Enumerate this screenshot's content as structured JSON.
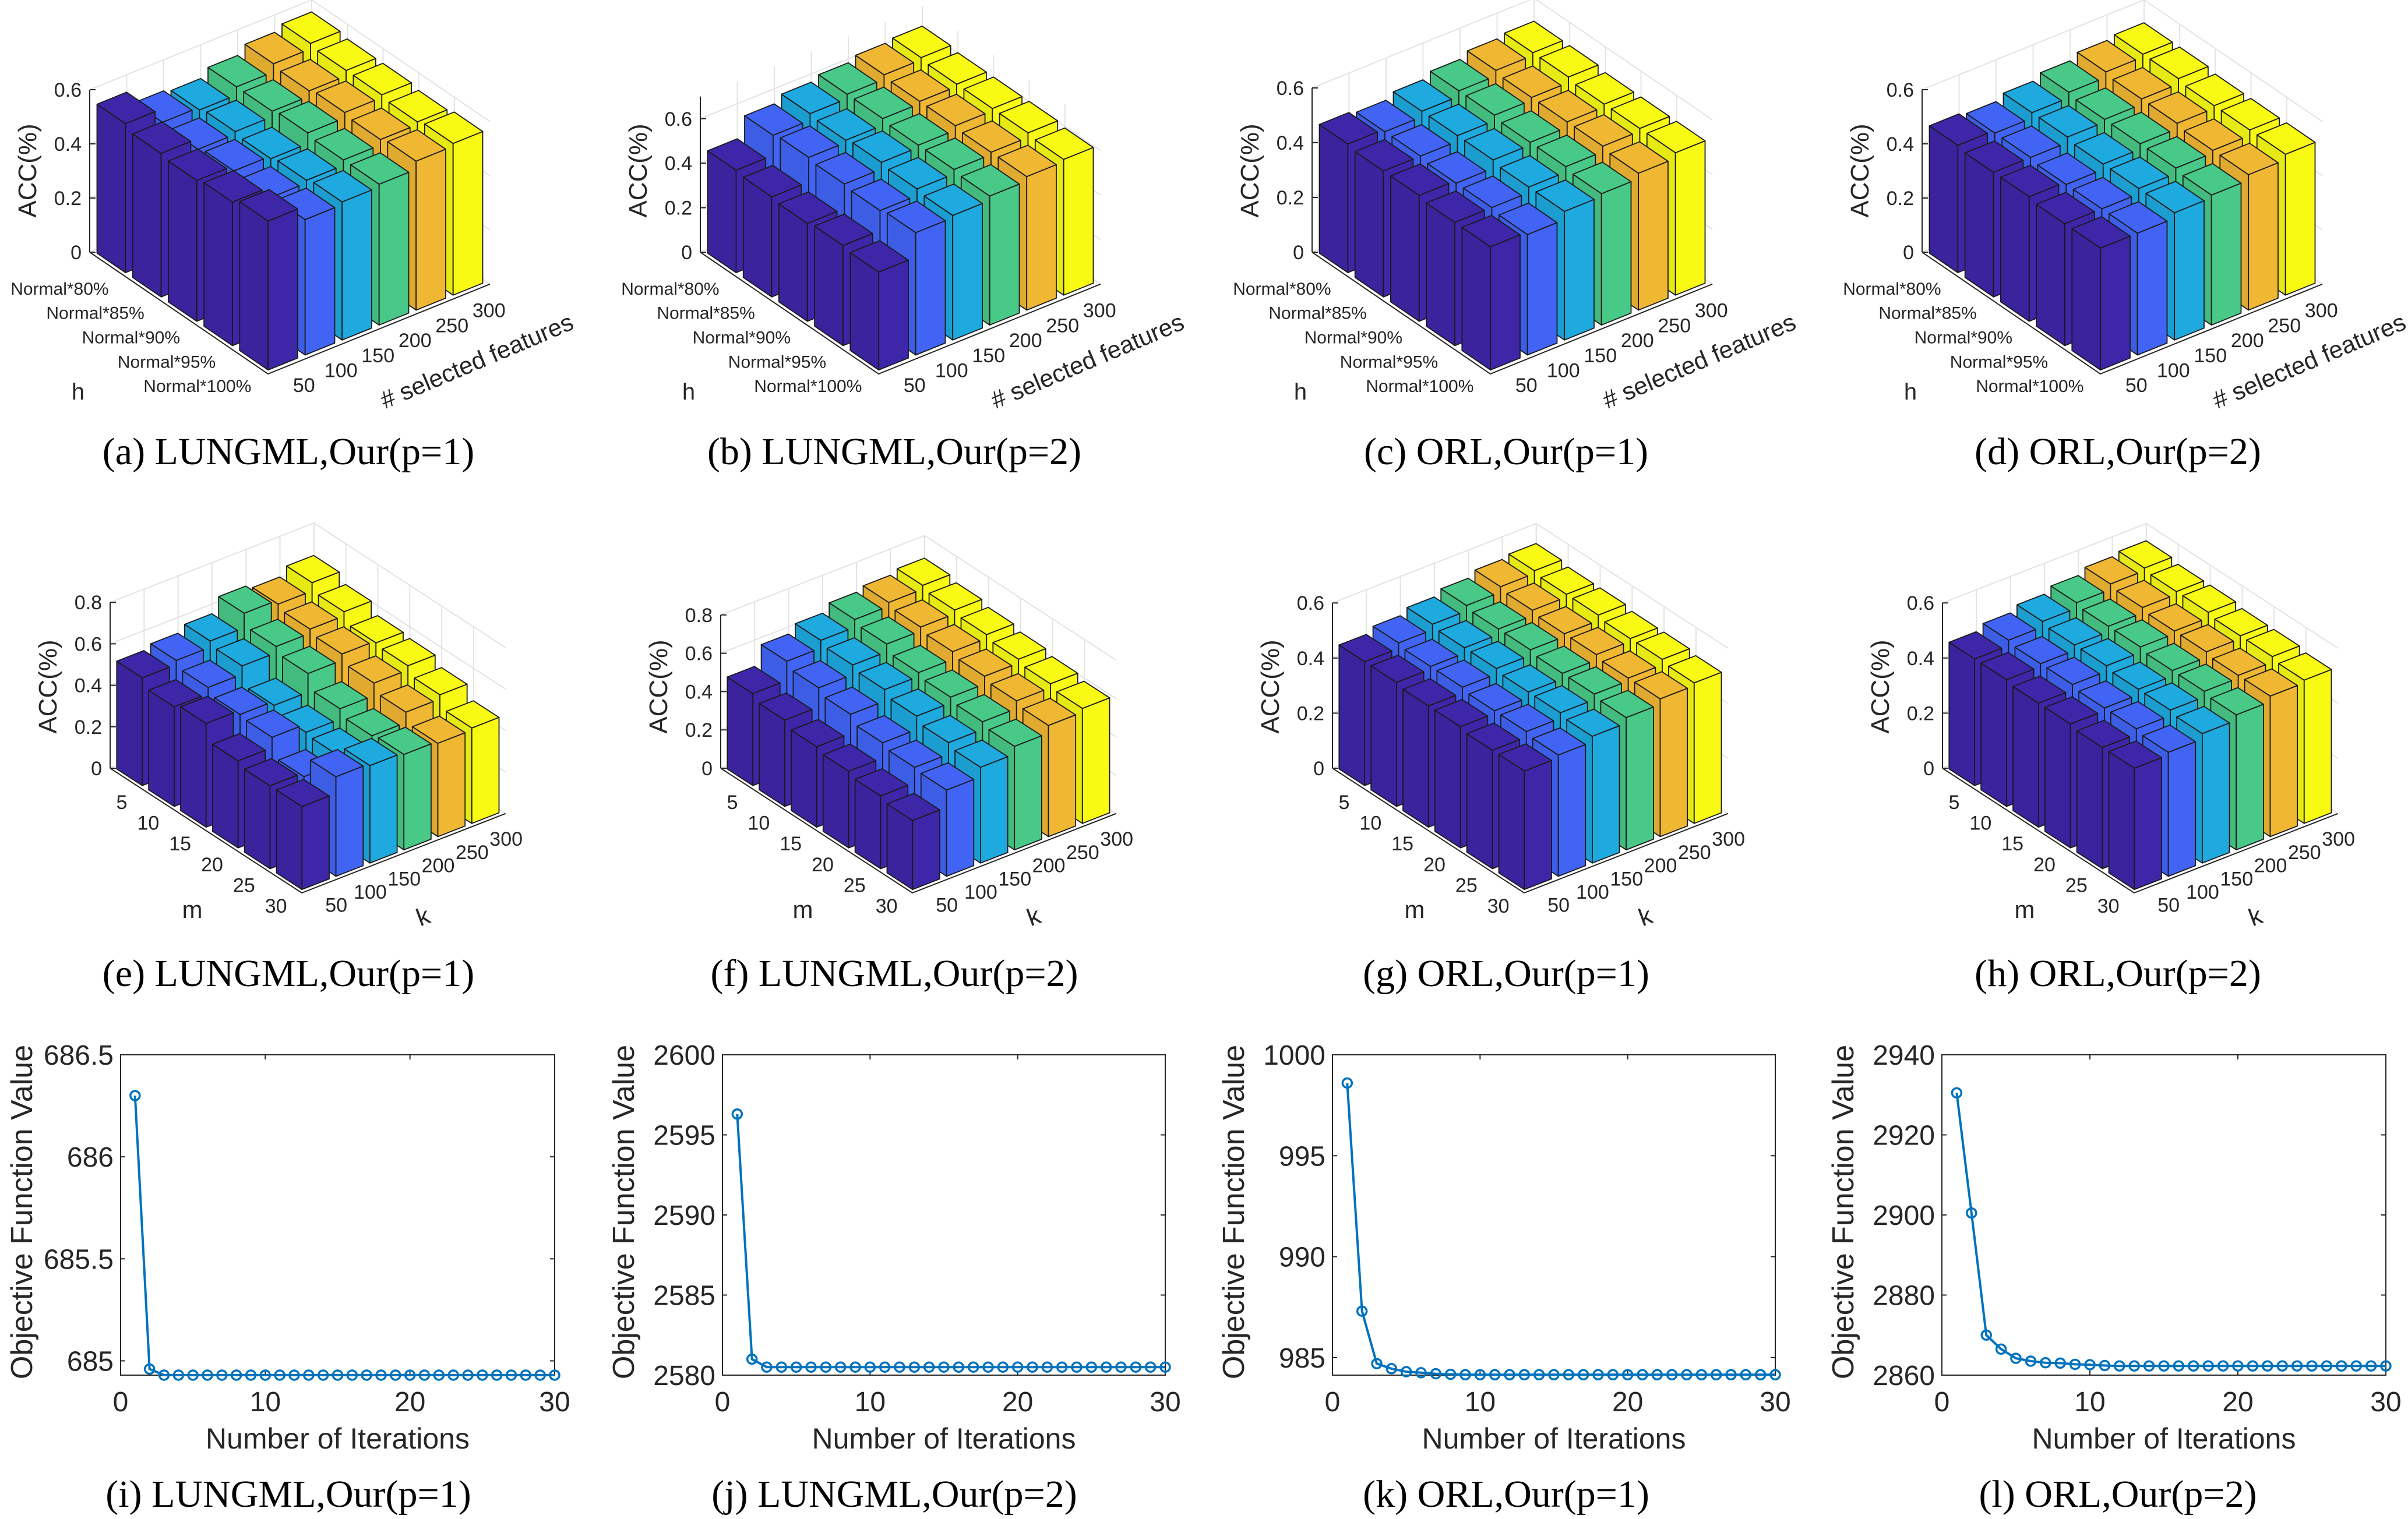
{
  "chart_data": [
    {
      "type": "bar3d",
      "caption": "(a) LUNGML,Our(p=1)",
      "zlabel": "ACC(%)",
      "row_label": "h",
      "col_label": "# selected features",
      "rows": [
        "Normal*80%",
        "Normal*85%",
        "Normal*90%",
        "Normal*95%",
        "Normal*100%"
      ],
      "cols": [
        "50",
        "100",
        "150",
        "200",
        "250",
        "300"
      ],
      "zticks": [
        0,
        0.2,
        0.4,
        0.6
      ],
      "zlim": [
        0,
        0.6
      ],
      "values": [
        [
          0.55,
          0.5,
          0.49,
          0.52,
          0.55,
          0.57
        ],
        [
          0.53,
          0.49,
          0.5,
          0.52,
          0.54,
          0.56
        ],
        [
          0.52,
          0.5,
          0.49,
          0.53,
          0.55,
          0.56
        ],
        [
          0.53,
          0.49,
          0.5,
          0.52,
          0.54,
          0.55
        ],
        [
          0.55,
          0.5,
          0.51,
          0.52,
          0.55,
          0.56
        ]
      ]
    },
    {
      "type": "bar3d",
      "caption": "(b) LUNGML,Our(p=2)",
      "zlabel": "ACC(%)",
      "row_label": "h",
      "col_label": "# selected features",
      "rows": [
        "Normal*80%",
        "Normal*85%",
        "Normal*90%",
        "Normal*95%",
        "Normal*100%"
      ],
      "cols": [
        "50",
        "100",
        "150",
        "200",
        "250",
        "300"
      ],
      "zticks": [
        0,
        0.2,
        0.4,
        0.6
      ],
      "zlim": [
        0,
        0.7
      ],
      "values": [
        [
          0.46,
          0.55,
          0.58,
          0.6,
          0.62,
          0.63
        ],
        [
          0.45,
          0.56,
          0.57,
          0.6,
          0.61,
          0.62
        ],
        [
          0.44,
          0.55,
          0.58,
          0.59,
          0.61,
          0.62
        ],
        [
          0.45,
          0.54,
          0.57,
          0.59,
          0.6,
          0.62
        ],
        [
          0.44,
          0.55,
          0.56,
          0.58,
          0.6,
          0.61
        ]
      ]
    },
    {
      "type": "bar3d",
      "caption": "(c) ORL,Our(p=1)",
      "zlabel": "ACC(%)",
      "row_label": "h",
      "col_label": "# selected features",
      "rows": [
        "Normal*80%",
        "Normal*85%",
        "Normal*90%",
        "Normal*95%",
        "Normal*100%"
      ],
      "cols": [
        "50",
        "100",
        "150",
        "200",
        "250",
        "300"
      ],
      "zticks": [
        0,
        0.2,
        0.4,
        0.6
      ],
      "zlim": [
        0,
        0.6
      ],
      "values": [
        [
          0.47,
          0.46,
          0.48,
          0.5,
          0.52,
          0.53
        ],
        [
          0.46,
          0.46,
          0.48,
          0.5,
          0.51,
          0.53
        ],
        [
          0.46,
          0.45,
          0.48,
          0.49,
          0.51,
          0.52
        ],
        [
          0.45,
          0.45,
          0.47,
          0.49,
          0.51,
          0.52
        ],
        [
          0.45,
          0.44,
          0.47,
          0.48,
          0.5,
          0.52
        ]
      ]
    },
    {
      "type": "bar3d",
      "caption": "(d) ORL,Our(p=2)",
      "zlabel": "ACC(%)",
      "row_label": "h",
      "col_label": "# selected features",
      "rows": [
        "Normal*80%",
        "Normal*85%",
        "Normal*90%",
        "Normal*95%",
        "Normal*100%"
      ],
      "cols": [
        "50",
        "100",
        "150",
        "200",
        "250",
        "300"
      ],
      "zticks": [
        0,
        0.2,
        0.4,
        0.6
      ],
      "zlim": [
        0,
        0.6
      ],
      "values": [
        [
          0.47,
          0.46,
          0.48,
          0.5,
          0.52,
          0.53
        ],
        [
          0.46,
          0.46,
          0.48,
          0.49,
          0.51,
          0.53
        ],
        [
          0.46,
          0.45,
          0.47,
          0.49,
          0.51,
          0.52
        ],
        [
          0.45,
          0.45,
          0.47,
          0.49,
          0.5,
          0.52
        ],
        [
          0.45,
          0.45,
          0.47,
          0.48,
          0.5,
          0.52
        ]
      ]
    },
    {
      "type": "bar3d",
      "caption": "(e) LUNGML,Our(p=1)",
      "zlabel": "ACC(%)",
      "row_label": "m",
      "col_label": "k",
      "rows": [
        "5",
        "10",
        "15",
        "20",
        "25",
        "30"
      ],
      "cols": [
        "50",
        "100",
        "150",
        "200",
        "250",
        "300"
      ],
      "zticks": [
        0,
        0.2,
        0.4,
        0.6,
        0.8
      ],
      "zlim": [
        0,
        0.8
      ],
      "values": [
        [
          0.52,
          0.54,
          0.57,
          0.64,
          0.62,
          0.66
        ],
        [
          0.48,
          0.51,
          0.55,
          0.58,
          0.6,
          0.62
        ],
        [
          0.5,
          0.48,
          0.46,
          0.55,
          0.58,
          0.57
        ],
        [
          0.42,
          0.47,
          0.43,
          0.48,
          0.54,
          0.56
        ],
        [
          0.4,
          0.38,
          0.42,
          0.45,
          0.5,
          0.52
        ],
        [
          0.4,
          0.48,
          0.47,
          0.46,
          0.45,
          0.46
        ]
      ]
    },
    {
      "type": "bar3d",
      "caption": "(f) LUNGML,Our(p=2)",
      "zlabel": "ACC(%)",
      "row_label": "m",
      "col_label": "k",
      "rows": [
        "5",
        "10",
        "15",
        "20",
        "25",
        "30"
      ],
      "cols": [
        "50",
        "100",
        "150",
        "200",
        "250",
        "300"
      ],
      "zticks": [
        0,
        0.2,
        0.4,
        0.6,
        0.8
      ],
      "zlim": [
        0,
        0.8
      ],
      "values": [
        [
          0.48,
          0.58,
          0.62,
          0.66,
          0.68,
          0.7
        ],
        [
          0.45,
          0.55,
          0.6,
          0.64,
          0.66,
          0.68
        ],
        [
          0.42,
          0.52,
          0.58,
          0.6,
          0.64,
          0.66
        ],
        [
          0.4,
          0.48,
          0.55,
          0.58,
          0.62,
          0.64
        ],
        [
          0.38,
          0.46,
          0.52,
          0.56,
          0.6,
          0.62
        ],
        [
          0.36,
          0.45,
          0.5,
          0.54,
          0.58,
          0.6
        ]
      ]
    },
    {
      "type": "bar3d",
      "caption": "(g) ORL,Our(p=1)",
      "zlabel": "ACC(%)",
      "row_label": "m",
      "col_label": "k",
      "rows": [
        "5",
        "10",
        "15",
        "20",
        "25",
        "30"
      ],
      "cols": [
        "50",
        "100",
        "150",
        "200",
        "250",
        "300"
      ],
      "zticks": [
        0,
        0.2,
        0.4,
        0.6
      ],
      "zlim": [
        0,
        0.6
      ],
      "values": [
        [
          0.45,
          0.47,
          0.49,
          0.51,
          0.53,
          0.54
        ],
        [
          0.45,
          0.46,
          0.48,
          0.5,
          0.52,
          0.53
        ],
        [
          0.44,
          0.46,
          0.48,
          0.5,
          0.51,
          0.53
        ],
        [
          0.44,
          0.45,
          0.47,
          0.49,
          0.51,
          0.52
        ],
        [
          0.43,
          0.45,
          0.47,
          0.49,
          0.5,
          0.52
        ],
        [
          0.43,
          0.44,
          0.46,
          0.48,
          0.5,
          0.51
        ]
      ]
    },
    {
      "type": "bar3d",
      "caption": "(h) ORL,Our(p=2)",
      "zlabel": "ACC(%)",
      "row_label": "m",
      "col_label": "k",
      "rows": [
        "5",
        "10",
        "15",
        "20",
        "25",
        "30"
      ],
      "cols": [
        "50",
        "100",
        "150",
        "200",
        "250",
        "300"
      ],
      "zticks": [
        0,
        0.2,
        0.4,
        0.6
      ],
      "zlim": [
        0,
        0.6
      ],
      "values": [
        [
          0.46,
          0.48,
          0.5,
          0.52,
          0.54,
          0.55
        ],
        [
          0.46,
          0.47,
          0.49,
          0.51,
          0.53,
          0.54
        ],
        [
          0.45,
          0.47,
          0.49,
          0.51,
          0.52,
          0.54
        ],
        [
          0.45,
          0.46,
          0.48,
          0.5,
          0.52,
          0.53
        ],
        [
          0.44,
          0.46,
          0.48,
          0.5,
          0.51,
          0.53
        ],
        [
          0.44,
          0.45,
          0.47,
          0.49,
          0.51,
          0.52
        ]
      ]
    },
    {
      "type": "line",
      "caption": "(i) LUNGML,Our(p=1)",
      "xlabel": "Number of Iterations",
      "ylabel": "Objective Function Value",
      "xlim": [
        0,
        30
      ],
      "xticks": [
        0,
        10,
        20,
        30
      ],
      "ylim": [
        684.93,
        686.5
      ],
      "yticks": [
        685,
        685.5,
        686,
        686.5
      ],
      "ytick_labels": [
        "685",
        "685.5",
        "686",
        "686.5"
      ],
      "x": [
        1,
        2,
        3,
        4,
        5,
        6,
        7,
        8,
        9,
        10,
        11,
        12,
        13,
        14,
        15,
        16,
        17,
        18,
        19,
        20,
        21,
        22,
        23,
        24,
        25,
        26,
        27,
        28,
        29,
        30
      ],
      "y": [
        686.3,
        684.96,
        684.93,
        684.93,
        684.93,
        684.93,
        684.93,
        684.93,
        684.93,
        684.93,
        684.93,
        684.93,
        684.93,
        684.93,
        684.93,
        684.93,
        684.93,
        684.93,
        684.93,
        684.93,
        684.93,
        684.93,
        684.93,
        684.93,
        684.93,
        684.93,
        684.93,
        684.93,
        684.93,
        684.93
      ]
    },
    {
      "type": "line",
      "caption": "(j) LUNGML,Our(p=2)",
      "xlabel": "Number of Iterations",
      "ylabel": "Objective Function Value",
      "xlim": [
        0,
        30
      ],
      "xticks": [
        0,
        10,
        20,
        30
      ],
      "ylim": [
        2580,
        2600
      ],
      "yticks": [
        2580,
        2585,
        2590,
        2595,
        2600
      ],
      "ytick_labels": [
        "2580",
        "2585",
        "2590",
        "2595",
        "2600"
      ],
      "x": [
        1,
        2,
        3,
        4,
        5,
        6,
        7,
        8,
        9,
        10,
        11,
        12,
        13,
        14,
        15,
        16,
        17,
        18,
        19,
        20,
        21,
        22,
        23,
        24,
        25,
        26,
        27,
        28,
        29,
        30
      ],
      "y": [
        2596.3,
        2581.0,
        2580.5,
        2580.5,
        2580.5,
        2580.5,
        2580.5,
        2580.5,
        2580.5,
        2580.5,
        2580.5,
        2580.5,
        2580.5,
        2580.5,
        2580.5,
        2580.5,
        2580.5,
        2580.5,
        2580.5,
        2580.5,
        2580.5,
        2580.5,
        2580.5,
        2580.5,
        2580.5,
        2580.5,
        2580.5,
        2580.5,
        2580.5,
        2580.5
      ]
    },
    {
      "type": "line",
      "caption": "(k) ORL,Our(p=1)",
      "xlabel": "Number of Iterations",
      "ylabel": "Objective Function Value",
      "xlim": [
        0,
        30
      ],
      "xticks": [
        0,
        10,
        20,
        30
      ],
      "ylim": [
        984.13,
        1000
      ],
      "yticks": [
        985,
        990,
        995,
        1000
      ],
      "ytick_labels": [
        "985",
        "990",
        "995",
        "1000"
      ],
      "x": [
        1,
        2,
        3,
        4,
        5,
        6,
        7,
        8,
        9,
        10,
        11,
        12,
        13,
        14,
        15,
        16,
        17,
        18,
        19,
        20,
        21,
        22,
        23,
        24,
        25,
        26,
        27,
        28,
        29,
        30
      ],
      "y": [
        998.6,
        987.3,
        984.7,
        984.45,
        984.3,
        984.25,
        984.2,
        984.17,
        984.15,
        984.15,
        984.15,
        984.15,
        984.15,
        984.15,
        984.15,
        984.15,
        984.15,
        984.15,
        984.15,
        984.15,
        984.15,
        984.15,
        984.15,
        984.15,
        984.15,
        984.15,
        984.15,
        984.15,
        984.15,
        984.15
      ]
    },
    {
      "type": "line",
      "caption": "(l) ORL,Our(p=2)",
      "xlabel": "Number of Iterations",
      "ylabel": "Objective Function Value",
      "xlim": [
        0,
        30
      ],
      "xticks": [
        0,
        10,
        20,
        30
      ],
      "ylim": [
        2860,
        2940
      ],
      "yticks": [
        2860,
        2880,
        2900,
        2920,
        2940
      ],
      "ytick_labels": [
        "2860",
        "2880",
        "2900",
        "2920",
        "2940"
      ],
      "x": [
        1,
        2,
        3,
        4,
        5,
        6,
        7,
        8,
        9,
        10,
        11,
        12,
        13,
        14,
        15,
        16,
        17,
        18,
        19,
        20,
        21,
        22,
        23,
        24,
        25,
        26,
        27,
        28,
        29,
        30
      ],
      "y": [
        2930.5,
        2900.5,
        2870,
        2866.5,
        2864.2,
        2863.5,
        2863.1,
        2863,
        2862.7,
        2862.6,
        2862.4,
        2862.3,
        2862.3,
        2862.3,
        2862.3,
        2862.3,
        2862.3,
        2862.3,
        2862.3,
        2862.3,
        2862.3,
        2862.3,
        2862.3,
        2862.3,
        2862.3,
        2862.3,
        2862.3,
        2862.3,
        2862.3,
        2862.3
      ]
    }
  ],
  "colors": {
    "bars": [
      "#3e26a8",
      "#4164f5",
      "#1ea9df",
      "#48c987",
      "#f0b733",
      "#f8fa14"
    ],
    "line": "#0072bd"
  }
}
